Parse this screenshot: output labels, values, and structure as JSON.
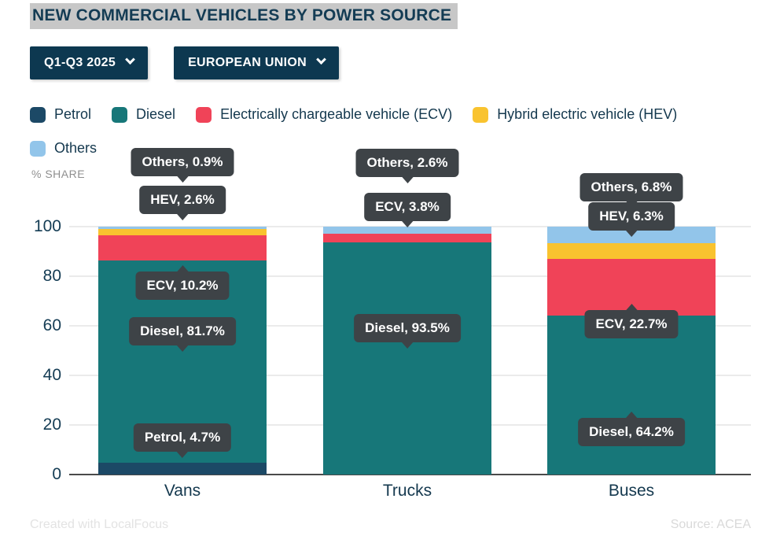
{
  "title": "NEW COMMERCIAL VEHICLES BY POWER SOURCE",
  "controls": {
    "period_dropdown": "Q1-Q3 2025",
    "region_dropdown": "EUROPEAN UNION"
  },
  "axis_note": "% SHARE",
  "footer": {
    "credit": "Created with LocalFocus",
    "source": "Source: ACEA"
  },
  "colors": {
    "petrol": "#1c4966",
    "diesel": "#177779",
    "ecv": "#f04358",
    "hev": "#f9c32f",
    "others": "#92c5ea",
    "navy": "#0d3850",
    "tooltip_bg": "#3e4347",
    "title_highlight": "#c7c7c7",
    "gridline": "#ebebeb",
    "axis_text": "#143c54"
  },
  "chart_data": {
    "type": "bar",
    "stacked": true,
    "title": "NEW COMMERCIAL VEHICLES BY POWER SOURCE",
    "ylabel": "% SHARE",
    "ylim": [
      0,
      100
    ],
    "yticks": [
      0,
      20,
      40,
      60,
      80,
      100
    ],
    "grid": true,
    "legend_position": "top",
    "categories": [
      "Vans",
      "Trucks",
      "Buses"
    ],
    "series": [
      {
        "name": "Petrol",
        "legend_label": "Petrol",
        "color_key": "petrol",
        "values": [
          4.7,
          0,
          0
        ]
      },
      {
        "name": "Diesel",
        "legend_label": "Diesel",
        "color_key": "diesel",
        "values": [
          81.7,
          93.5,
          64.2
        ]
      },
      {
        "name": "ECV",
        "legend_label": "Electrically chargeable vehicle (ECV)",
        "color_key": "ecv",
        "values": [
          10.2,
          3.8,
          22.7
        ]
      },
      {
        "name": "HEV",
        "legend_label": "Hybrid electric vehicle (HEV)",
        "color_key": "hev",
        "values": [
          2.6,
          0,
          6.3
        ]
      },
      {
        "name": "Others",
        "legend_label": "Others",
        "color_key": "others",
        "values": [
          0.9,
          2.6,
          6.8
        ]
      }
    ],
    "data_labels": [
      {
        "category": "Vans",
        "series": "Others",
        "text": "Others, 0.9%"
      },
      {
        "category": "Vans",
        "series": "HEV",
        "text": "HEV, 2.6%"
      },
      {
        "category": "Vans",
        "series": "ECV",
        "text": "ECV, 10.2%"
      },
      {
        "category": "Vans",
        "series": "Diesel",
        "text": "Diesel, 81.7%"
      },
      {
        "category": "Vans",
        "series": "Petrol",
        "text": "Petrol, 4.7%"
      },
      {
        "category": "Trucks",
        "series": "Others",
        "text": "Others, 2.6%"
      },
      {
        "category": "Trucks",
        "series": "ECV",
        "text": "ECV, 3.8%"
      },
      {
        "category": "Trucks",
        "series": "Diesel",
        "text": "Diesel, 93.5%"
      },
      {
        "category": "Buses",
        "series": "Others",
        "text": "Others, 6.8%"
      },
      {
        "category": "Buses",
        "series": "HEV",
        "text": "HEV, 6.3%"
      },
      {
        "category": "Buses",
        "series": "ECV",
        "text": "ECV, 22.7%"
      },
      {
        "category": "Buses",
        "series": "Diesel",
        "text": "Diesel, 64.2%"
      }
    ]
  }
}
